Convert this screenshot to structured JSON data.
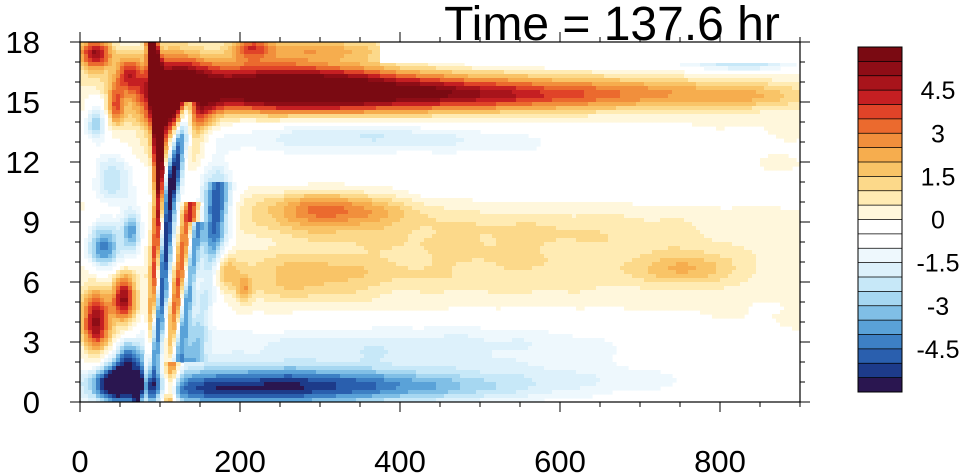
{
  "chart_data": {
    "type": "heatmap",
    "title": "Time = 137.6 hr",
    "xlabel": "",
    "ylabel": "",
    "xlim": [
      0,
      900
    ],
    "ylim": [
      0,
      18
    ],
    "x_ticks": [
      "0",
      "200",
      "400",
      "600",
      "800"
    ],
    "y_ticks": [
      "0",
      "3",
      "6",
      "9",
      "12",
      "15",
      "18"
    ],
    "colorbar": {
      "range": [
        -6,
        6
      ],
      "step": 0.5,
      "tick_labels": [
        "4.5",
        "3",
        "1.5",
        "0",
        "-1.5",
        "-3",
        "-4.5"
      ],
      "colors": [
        "#2a1650",
        "#1d3b8a",
        "#2a5fae",
        "#3d80c4",
        "#5aa2d8",
        "#80bfe6",
        "#a6d7f1",
        "#c7e8f8",
        "#ddf1fb",
        "#eef8fd",
        "#ffffff",
        "#ffffff",
        "#fff7dc",
        "#ffebb3",
        "#fcd98a",
        "#f9c467",
        "#f6ad4e",
        "#f18f3c",
        "#eb6a2e",
        "#e04328",
        "#c51f22",
        "#a8141b",
        "#8e0d16",
        "#7a0a12"
      ]
    },
    "features": [
      {
        "cx": 45,
        "cy": 1.0,
        "rx": 25,
        "ry": 1.0,
        "v": -5.5
      },
      {
        "cx": 200,
        "cy": 0.7,
        "rx": 190,
        "ry": 1.0,
        "v": -5.0
      },
      {
        "cx": 430,
        "cy": 0.8,
        "rx": 200,
        "ry": 0.9,
        "v": -2.2
      },
      {
        "cx": 700,
        "cy": 1.2,
        "rx": 220,
        "ry": 1.2,
        "v": -0.8
      },
      {
        "cx": 300,
        "cy": 2.7,
        "rx": 240,
        "ry": 1.2,
        "v": -1.6
      },
      {
        "cx": 560,
        "cy": 3.0,
        "rx": 200,
        "ry": 1.2,
        "v": -0.9
      },
      {
        "cx": 250,
        "cy": 15.7,
        "rx": 150,
        "ry": 1.2,
        "v": 7.0
      },
      {
        "cx": 450,
        "cy": 15.4,
        "rx": 170,
        "ry": 0.9,
        "v": 4.2
      },
      {
        "cx": 680,
        "cy": 15.4,
        "rx": 170,
        "ry": 0.8,
        "v": 2.4
      },
      {
        "cx": 840,
        "cy": 15.3,
        "rx": 70,
        "ry": 0.7,
        "v": 1.2
      },
      {
        "cx": 120,
        "cy": 15.0,
        "rx": 40,
        "ry": 2.2,
        "v": 6.5
      },
      {
        "cx": 300,
        "cy": 13.3,
        "rx": 160,
        "ry": 0.9,
        "v": -1.8
      },
      {
        "cx": 520,
        "cy": 13.0,
        "rx": 200,
        "ry": 1.0,
        "v": -1.0
      },
      {
        "cx": 640,
        "cy": 17.2,
        "rx": 260,
        "ry": 0.5,
        "v": -1.2
      },
      {
        "cx": 830,
        "cy": 17.0,
        "rx": 60,
        "ry": 0.5,
        "v": -2.2
      },
      {
        "cx": 300,
        "cy": 17.6,
        "rx": 90,
        "ry": 0.6,
        "v": 2.0
      },
      {
        "cx": 215,
        "cy": 17.7,
        "rx": 25,
        "ry": 0.6,
        "v": 3.0
      },
      {
        "cx": 20,
        "cy": 17.4,
        "rx": 20,
        "ry": 0.8,
        "v": 5.0
      },
      {
        "cx": 60,
        "cy": 16.5,
        "rx": 15,
        "ry": 0.8,
        "v": 3.0
      },
      {
        "cx": 310,
        "cy": 9.6,
        "rx": 90,
        "ry": 1.0,
        "v": 3.0
      },
      {
        "cx": 540,
        "cy": 8.5,
        "rx": 280,
        "ry": 1.3,
        "v": 1.0
      },
      {
        "cx": 760,
        "cy": 6.7,
        "rx": 60,
        "ry": 0.8,
        "v": 1.6
      },
      {
        "cx": 500,
        "cy": 6.5,
        "rx": 320,
        "ry": 1.3,
        "v": 0.9
      },
      {
        "cx": 280,
        "cy": 6.2,
        "rx": 90,
        "ry": 1.2,
        "v": 1.3
      },
      {
        "cx": 370,
        "cy": 10.8,
        "rx": 300,
        "ry": 0.8,
        "v": -0.5
      },
      {
        "cx": 700,
        "cy": 10.5,
        "rx": 180,
        "ry": 0.8,
        "v": -0.4
      },
      {
        "cx": 20,
        "cy": 4.0,
        "rx": 18,
        "ry": 1.6,
        "v": 5.5
      },
      {
        "cx": 55,
        "cy": 5.2,
        "rx": 14,
        "ry": 1.2,
        "v": 5.0
      },
      {
        "cx": 30,
        "cy": 7.8,
        "rx": 22,
        "ry": 1.2,
        "v": -4.2
      },
      {
        "cx": 65,
        "cy": 8.5,
        "rx": 12,
        "ry": 1.2,
        "v": -3.5
      },
      {
        "cx": 40,
        "cy": 11.2,
        "rx": 25,
        "ry": 1.3,
        "v": -2.5
      },
      {
        "cx": 20,
        "cy": 14.0,
        "rx": 12,
        "ry": 1.0,
        "v": -2.8
      },
      {
        "cx": 45,
        "cy": 14.8,
        "rx": 10,
        "ry": 1.0,
        "v": 3.0
      },
      {
        "cx": 60,
        "cy": 2.2,
        "rx": 14,
        "ry": 1.0,
        "v": -3.5
      },
      {
        "cx": 170,
        "cy": 9.5,
        "rx": 20,
        "ry": 2.8,
        "v": -3.0
      },
      {
        "cx": 180,
        "cy": 6.6,
        "rx": 15,
        "ry": 0.8,
        "v": 2.2
      },
      {
        "cx": 205,
        "cy": 5.6,
        "rx": 10,
        "ry": 0.8,
        "v": 1.8
      }
    ],
    "streaks": [
      {
        "x_at_y": [
          [
            0,
            80
          ],
          [
            5,
            92
          ],
          [
            10,
            100
          ],
          [
            16,
            97
          ],
          [
            18,
            90
          ]
        ],
        "width": 7,
        "v": 7.0
      },
      {
        "x_at_y": [
          [
            0,
            78
          ],
          [
            5,
            98
          ],
          [
            10,
            110
          ],
          [
            13,
            125
          ],
          [
            15,
            135
          ]
        ],
        "width": 11,
        "v": -6.5
      },
      {
        "x_at_y": [
          [
            0,
            110
          ],
          [
            5,
            122
          ],
          [
            10,
            140
          ]
        ],
        "width": 10,
        "v": 4.5
      },
      {
        "x_at_y": [
          [
            2,
            140
          ],
          [
            6,
            160
          ],
          [
            11,
            175
          ]
        ],
        "width": 14,
        "v": -2.2
      },
      {
        "x_at_y": [
          [
            2,
            120
          ],
          [
            5,
            132
          ],
          [
            9,
            145
          ]
        ],
        "width": 9,
        "v": -5.0
      }
    ]
  }
}
